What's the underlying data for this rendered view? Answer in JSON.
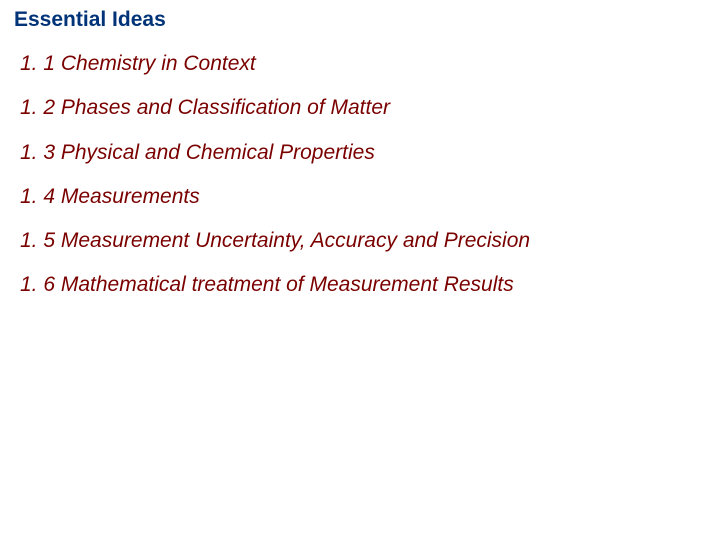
{
  "title": "Essential Ideas",
  "title_color": "#003377",
  "item_color": "#7a0000",
  "background_color": "#ffffff",
  "title_fontsize": 21,
  "item_fontsize": 21,
  "items": [
    "1. 1 Chemistry in Context",
    "1. 2  Phases and Classification of Matter",
    "1. 3 Physical and Chemical Properties",
    "1. 4 Measurements",
    "1. 5 Measurement Uncertainty, Accuracy and Precision",
    "1. 6 Mathematical treatment of Measurement Results"
  ]
}
